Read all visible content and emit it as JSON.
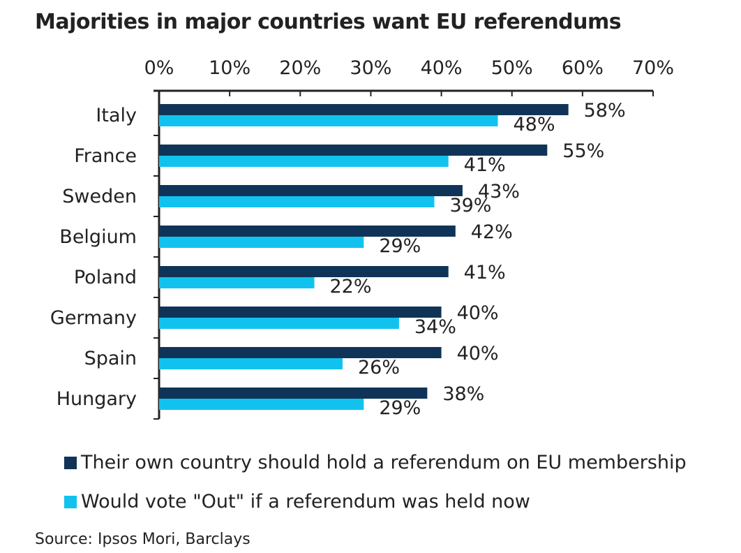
{
  "title": "Majorities in major countries want EU referendums",
  "source": "Source: Ipsos Mori, Barclays",
  "colors": {
    "series1": "#0f3457",
    "series2": "#12c2ee",
    "axis": "#222222"
  },
  "chart_data": {
    "type": "bar",
    "orientation": "horizontal",
    "title": "Majorities in major countries want EU referendums",
    "categories": [
      "Italy",
      "France",
      "Sweden",
      "Belgium",
      "Poland",
      "Germany",
      "Spain",
      "Hungary"
    ],
    "series": [
      {
        "name": "Their own country should hold a referendum on EU membership",
        "values": [
          58,
          55,
          43,
          42,
          41,
          40,
          40,
          38
        ],
        "labels": [
          "58%",
          "55%",
          "43%",
          "42%",
          "41%",
          "40%",
          "40%",
          "38%"
        ]
      },
      {
        "name": "Would vote \"Out\" if a referendum was held now",
        "values": [
          48,
          41,
          39,
          29,
          22,
          34,
          26,
          29
        ],
        "labels": [
          "48%",
          "41%",
          "39%",
          "29%",
          "22%",
          "34%",
          "26%",
          "29%"
        ]
      }
    ],
    "xlim": [
      0,
      70
    ],
    "xticks": [
      0,
      10,
      20,
      30,
      40,
      50,
      60,
      70
    ],
    "xtick_labels": [
      "0%",
      "10%",
      "20%",
      "30%",
      "40%",
      "50%",
      "60%",
      "70%"
    ],
    "axis_position": "top",
    "grid": false,
    "legend_position": "bottom"
  }
}
